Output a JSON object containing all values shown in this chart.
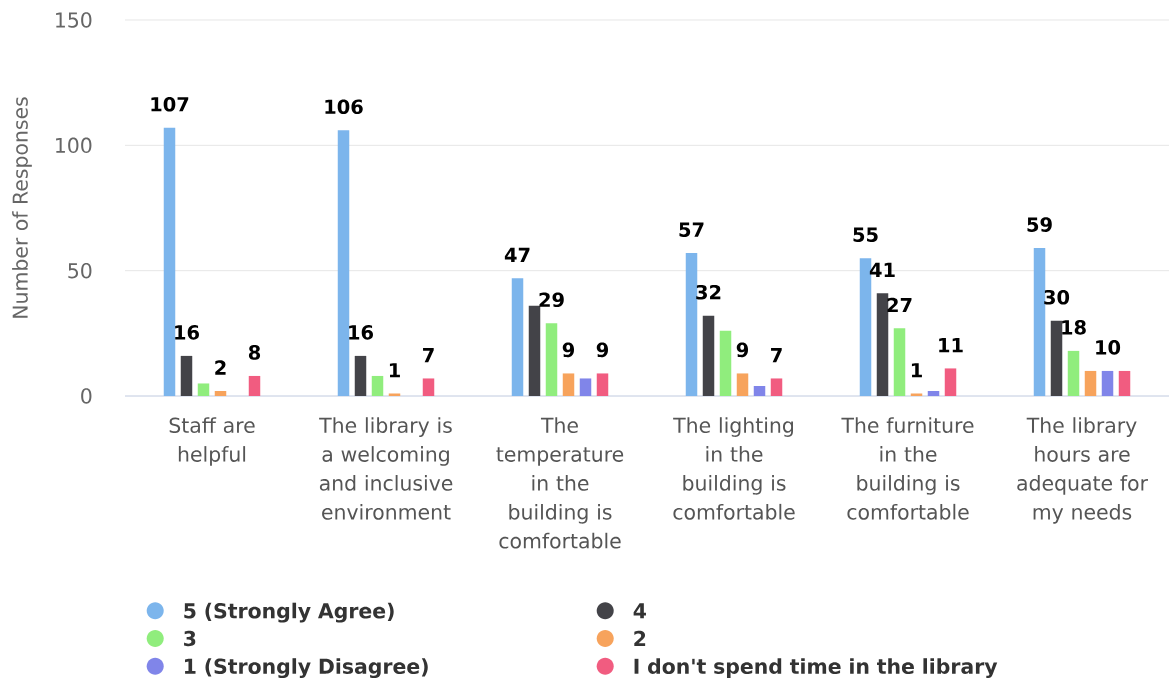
{
  "chart_data": {
    "type": "bar",
    "ylabel": "Number of Responses",
    "categories": [
      "Staff are helpful",
      "The library is a welcoming and inclusive environment",
      "The temperature in the building is comfortable",
      "The lighting in the building is comfortable",
      "The furniture in the building is comfortable",
      "The library hours are adequate for my needs"
    ],
    "series": [
      {
        "name": "5 (Strongly Agree)",
        "color": "#7cb5ec",
        "values": [
          107,
          106,
          47,
          57,
          55,
          59
        ],
        "value_labels": [
          "107",
          "106",
          "47",
          "57",
          "55",
          "59"
        ]
      },
      {
        "name": "4",
        "color": "#434348",
        "values": [
          16,
          16,
          36,
          32,
          41,
          30
        ],
        "value_labels": [
          "16",
          "16",
          null,
          "32",
          "41",
          "30"
        ]
      },
      {
        "name": "3",
        "color": "#90ed7d",
        "values": [
          5,
          8,
          29,
          26,
          27,
          18
        ],
        "value_labels": [
          null,
          null,
          "29",
          null,
          "27",
          "18"
        ]
      },
      {
        "name": "2",
        "color": "#f7a35c",
        "values": [
          2,
          1,
          9,
          9,
          1,
          10
        ],
        "value_labels": [
          "2",
          "1",
          "9",
          "9",
          "1",
          null
        ]
      },
      {
        "name": "1 (Strongly Disagree)",
        "color": "#8085e9",
        "values": [
          null,
          null,
          7,
          4,
          2,
          10
        ],
        "value_labels": [
          null,
          null,
          null,
          null,
          null,
          "10"
        ]
      },
      {
        "name": "I don't spend time in the library",
        "color": "#f15c80",
        "values": [
          8,
          7,
          9,
          7,
          11,
          10
        ],
        "value_labels": [
          "8",
          "7",
          "9",
          "7",
          "11",
          null
        ]
      }
    ],
    "ylim": [
      0,
      150
    ],
    "yticks": [
      0,
      50,
      100,
      150
    ],
    "grid": "y",
    "legend": "bottom"
  }
}
